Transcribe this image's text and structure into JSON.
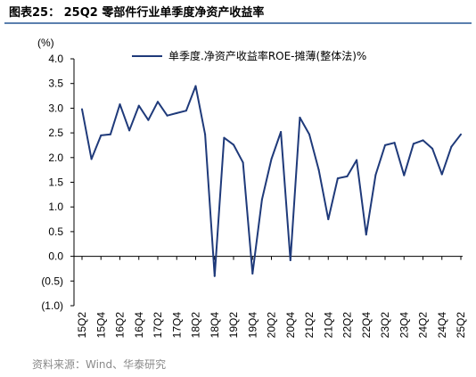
{
  "figure_title": "图表25： 25Q2 零部件行业单季度净资产收益率",
  "source_note": "资料来源：Wind、华泰研究",
  "colors": {
    "series": "#1f3a7a",
    "title_rule": "#5b7fae",
    "axis": "#000000",
    "source_text": "#8a8a8a"
  },
  "chart_data": {
    "type": "line",
    "unit_label": "(%)",
    "ylim": [
      -1.0,
      4.0
    ],
    "yticks": [
      -1.0,
      -0.5,
      0.0,
      0.5,
      1.0,
      1.5,
      2.0,
      2.5,
      3.0,
      3.5,
      4.0
    ],
    "ytick_labels": [
      "(1.0)",
      "(0.5)",
      "0.0",
      "0.5",
      "1.0",
      "1.5",
      "2.0",
      "2.5",
      "3.0",
      "3.5",
      "4.0"
    ],
    "grid": false,
    "legend_position": "top",
    "xtick_labels": [
      "15Q2",
      "15Q4",
      "16Q2",
      "16Q4",
      "17Q2",
      "17Q4",
      "18Q2",
      "18Q4",
      "19Q2",
      "19Q4",
      "20Q2",
      "20Q4",
      "21Q2",
      "21Q4",
      "22Q2",
      "22Q4",
      "23Q2",
      "23Q4",
      "24Q2",
      "24Q4",
      "25Q2"
    ],
    "x": [
      "15Q2",
      "15Q3",
      "15Q4",
      "16Q1",
      "16Q2",
      "16Q3",
      "16Q4",
      "17Q1",
      "17Q2",
      "17Q3",
      "17Q4",
      "18Q1",
      "18Q2",
      "18Q3",
      "18Q4",
      "19Q1",
      "19Q2",
      "19Q3",
      "19Q4",
      "20Q1",
      "20Q2",
      "20Q3",
      "20Q4",
      "21Q1",
      "21Q2",
      "21Q3",
      "21Q4",
      "22Q1",
      "22Q2",
      "22Q3",
      "22Q4",
      "23Q1",
      "23Q2",
      "23Q3",
      "23Q4",
      "24Q1",
      "24Q2",
      "24Q3",
      "24Q4",
      "25Q1",
      "25Q2"
    ],
    "series": [
      {
        "name": "单季度.净资产收益率ROE-摊薄(整体法)%",
        "values": [
          2.98,
          1.97,
          2.45,
          2.47,
          3.08,
          2.55,
          3.05,
          2.76,
          3.13,
          2.85,
          2.9,
          2.95,
          3.45,
          2.47,
          -0.4,
          2.4,
          2.26,
          1.9,
          -0.35,
          1.15,
          1.97,
          2.52,
          -0.08,
          2.81,
          2.47,
          1.75,
          0.75,
          1.58,
          1.62,
          1.95,
          0.44,
          1.65,
          2.25,
          2.3,
          1.64,
          2.28,
          2.35,
          2.18,
          1.66,
          2.22,
          2.47
        ]
      }
    ]
  }
}
